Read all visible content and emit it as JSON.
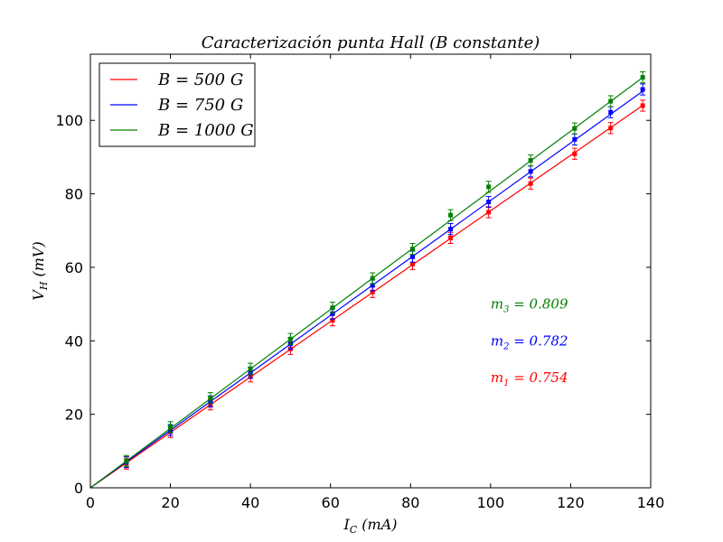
{
  "chart_data": {
    "type": "scatter",
    "title": "Caracterización punta Hall (B constante)",
    "xlabel": "I_C (mA)",
    "ylabel": "V_H (mV)",
    "xlim": [
      0,
      140
    ],
    "ylim": [
      0,
      118
    ],
    "xticks": [
      0,
      20,
      40,
      60,
      80,
      100,
      120,
      140
    ],
    "yticks": [
      0,
      20,
      40,
      60,
      80,
      100
    ],
    "legend_position": "top-left",
    "grid": false,
    "x": [
      9,
      20,
      30,
      40,
      50,
      60.5,
      70.5,
      80.5,
      90,
      99.5,
      110,
      121,
      130,
      138
    ],
    "series": [
      {
        "name": "B = 500 G",
        "color": "#ff0000",
        "slope": 0.754,
        "values": [
          6.6,
          15.2,
          22.7,
          30.3,
          37.8,
          45.6,
          53.3,
          60.9,
          68.0,
          75.0,
          82.8,
          90.9,
          97.9,
          104.0
        ],
        "error": 1.5
      },
      {
        "name": "B = 750 G",
        "color": "#0000ff",
        "slope": 0.782,
        "values": [
          7.0,
          15.7,
          23.5,
          31.3,
          39.2,
          47.4,
          55.1,
          62.9,
          70.4,
          77.8,
          86.1,
          94.8,
          102.2,
          108.4
        ],
        "error": 1.5
      },
      {
        "name": "B = 1000 G",
        "color": "#008000",
        "slope": 0.809,
        "values": [
          7.3,
          16.5,
          24.4,
          32.4,
          40.5,
          49.0,
          57.0,
          65.0,
          74.2,
          81.9,
          89.1,
          97.8,
          105.2,
          111.7
        ],
        "error": 1.5
      }
    ],
    "annotations": [
      {
        "label": "m_3 = 0.809",
        "x": 100,
        "y": 50,
        "color": "#008000"
      },
      {
        "label": "m_2 = 0.782",
        "x": 100,
        "y": 40,
        "color": "#0000ff"
      },
      {
        "label": "m_1 = 0.754",
        "x": 100,
        "y": 30,
        "color": "#ff0000"
      }
    ]
  }
}
